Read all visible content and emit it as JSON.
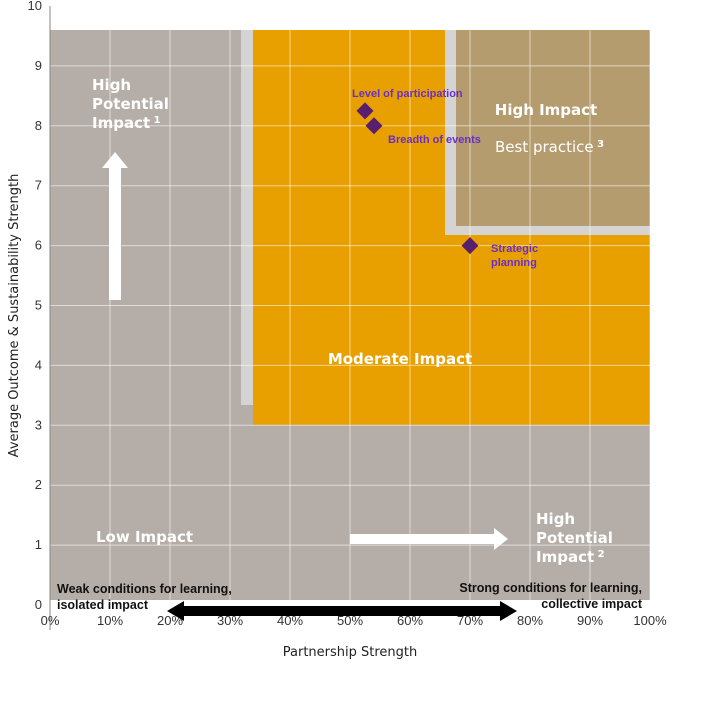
{
  "chart_data": {
    "type": "scatter",
    "xlabel": "Partnership Strength",
    "ylabel": "Average Outcome & Sustainability Strength",
    "xlim": [
      0,
      100
    ],
    "ylim": [
      0,
      10
    ],
    "x_ticks": [
      "0%",
      "10%",
      "20%",
      "30%",
      "40%",
      "50%",
      "60%",
      "70%",
      "80%",
      "90%",
      "100%"
    ],
    "y_ticks": [
      "0",
      "1",
      "2",
      "3",
      "4",
      "5",
      "6",
      "7",
      "8",
      "9",
      "10"
    ],
    "grid": true,
    "points": [
      {
        "label": "Level of participation",
        "x": 52.5,
        "y": 8.25
      },
      {
        "label": "Breadth of events",
        "x": 54,
        "y": 8.0
      },
      {
        "label": "Strategic planning",
        "label_lines": [
          "Strategic",
          "planning"
        ],
        "x": 70,
        "y": 6.0
      }
    ],
    "zones": [
      {
        "name": "Low Impact",
        "color": "#b5aea8"
      },
      {
        "name": "Moderate Impact",
        "color": "#e8a000"
      },
      {
        "name": "High Impact",
        "sub": "Best practice",
        "sub_sup": "3",
        "color": "#b59c6e"
      }
    ],
    "annotations": {
      "high_potential_left": {
        "lines": [
          "High",
          "Potential",
          "Impact"
        ],
        "sup": "1"
      },
      "high_potential_right": {
        "lines": [
          "High",
          "Potential",
          "Impact"
        ],
        "sup": "2"
      },
      "weak_conditions": [
        "Weak conditions for learning,",
        "isolated impact"
      ],
      "strong_conditions": [
        "Strong conditions for learning,",
        "collective impact"
      ]
    },
    "colors": {
      "point": "#5a1e6e",
      "point_label": "#6a2fc8",
      "grid": "#ffffff",
      "arrow_white": "#ffffff",
      "arrow_black": "#000000",
      "border_light": "#d6d4d2"
    }
  }
}
